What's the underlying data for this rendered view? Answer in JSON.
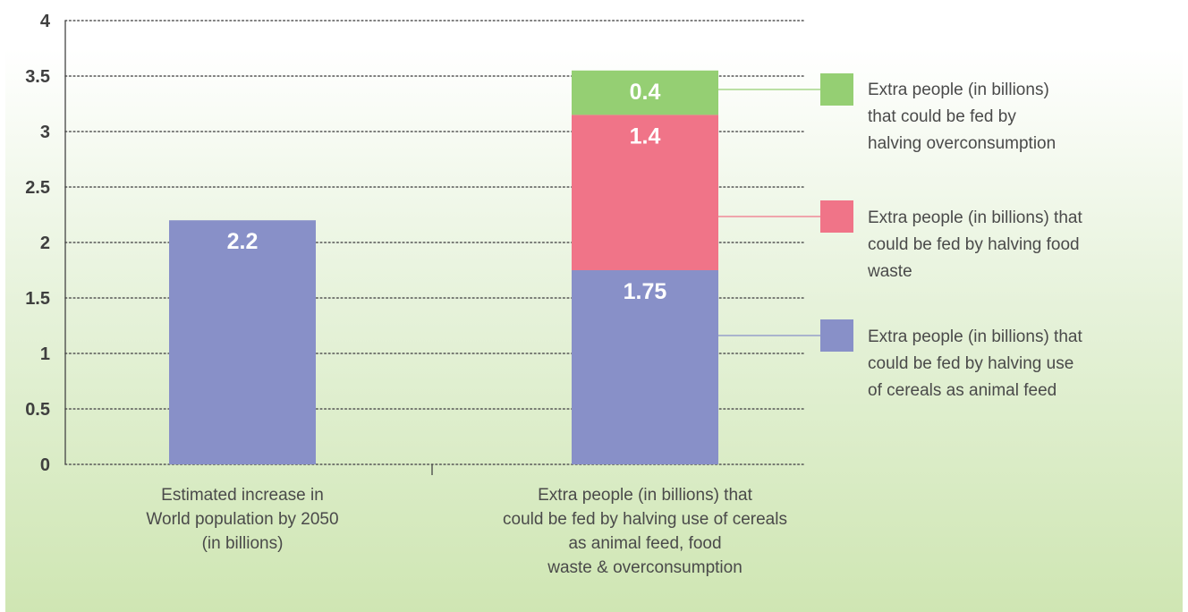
{
  "chart_data": {
    "type": "bar",
    "stacked": true,
    "title": "",
    "xlabel": "",
    "ylabel": "",
    "ylim": [
      0,
      4
    ],
    "yticks": [
      "0",
      "0.5",
      "1",
      "1.5",
      "2",
      "2.5",
      "3",
      "3.5",
      "4"
    ],
    "grid": true,
    "legend_position": "right",
    "categories": [
      "Estimated increase in\nWorld population by 2050\n(in billions)",
      "Extra people (in billions) that\ncould be fed by halving use of cereals\nas animal feed, food\nwaste & overconsumption"
    ],
    "series": [
      {
        "key": "primary",
        "color": "#8890c8",
        "values": [
          2.2,
          1.75
        ],
        "labels": [
          "2.2",
          "1.75"
        ]
      },
      {
        "key": "food_waste",
        "name": "Extra people (in billions) that\ncould be fed by halving food\nwaste",
        "color": "#f07488",
        "values": [
          0,
          1.4
        ],
        "labels": [
          "",
          "1.4"
        ]
      },
      {
        "key": "overconsumption",
        "name": "Extra people (in billions)\nthat could be fed by\nhalving overconsumption",
        "color": "#95cf73",
        "values": [
          0,
          0.4
        ],
        "labels": [
          "",
          "0.4"
        ]
      }
    ],
    "legend": [
      {
        "text": "Extra people (in billions)\nthat could be fed by\nhalving overconsumption",
        "color": "#95cf73"
      },
      {
        "text": "Extra people (in billions) that\ncould be fed by halving food\nwaste",
        "color": "#f07488"
      },
      {
        "text": "Extra people (in billions) that\ncould be fed by halving use\nof cereals as animal feed",
        "color": "#8890c8"
      }
    ],
    "colors": {
      "background_top": "#ffffff",
      "background_bottom": "#cfe6b3",
      "axis": "#444444",
      "grid": "#555555",
      "bar_label": "#ffffff"
    }
  }
}
